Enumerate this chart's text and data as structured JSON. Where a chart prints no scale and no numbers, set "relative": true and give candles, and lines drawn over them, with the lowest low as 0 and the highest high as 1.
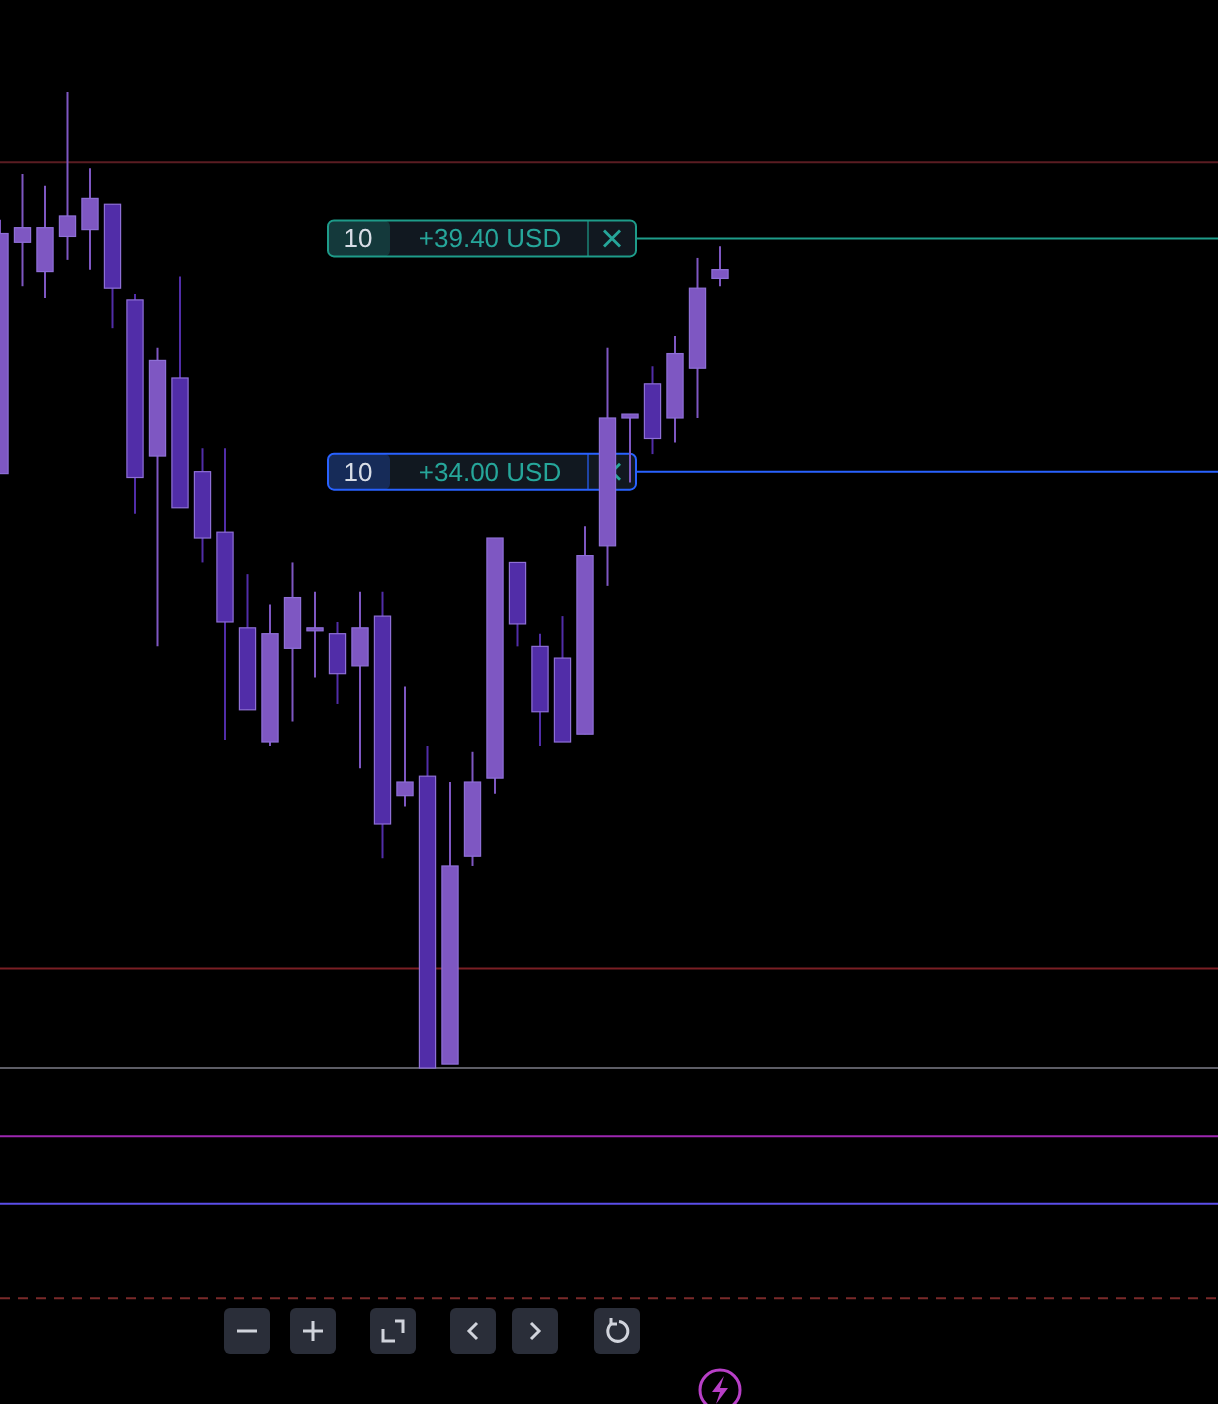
{
  "chart_data": {
    "type": "candlestick",
    "relative": true,
    "categories": [
      null,
      null,
      null,
      null,
      null,
      null,
      null,
      null,
      null,
      null,
      null,
      null,
      null,
      null,
      null,
      null,
      null,
      null,
      null,
      null,
      null,
      null,
      null,
      null,
      null,
      null,
      null,
      null,
      null,
      null,
      null,
      null,
      null
    ],
    "ohlc": [
      [
        0.609,
        0.869,
        0.609,
        0.855
      ],
      [
        0.846,
        0.916,
        0.801,
        0.861
      ],
      [
        0.816,
        0.904,
        0.789,
        0.861
      ],
      [
        0.852,
        1,
        0.828,
        0.873
      ],
      [
        0.859,
        0.922,
        0.818,
        0.891
      ],
      [
        0.885,
        0.885,
        0.758,
        0.799
      ],
      [
        0.787,
        0.793,
        0.568,
        0.605
      ],
      [
        0.627,
        0.738,
        0.432,
        0.725
      ],
      [
        0.707,
        0.811,
        0.574,
        0.574
      ],
      [
        0.611,
        0.635,
        0.518,
        0.543
      ],
      [
        0.549,
        0.635,
        0.336,
        0.457
      ],
      [
        0.451,
        0.506,
        0.367,
        0.367
      ],
      [
        0.334,
        0.475,
        0.33,
        0.445
      ],
      [
        0.43,
        0.518,
        0.355,
        0.482
      ],
      [
        0.451,
        0.488,
        0.4,
        0.451
      ],
      [
        0.445,
        0.457,
        0.373,
        0.404
      ],
      [
        0.412,
        0.488,
        0.307,
        0.451
      ],
      [
        0.463,
        0.488,
        0.215,
        0.25
      ],
      [
        0.279,
        0.391,
        0.268,
        0.293
      ],
      [
        0.299,
        0.33,
        0,
        0
      ],
      [
        0.004,
        0.293,
        0.004,
        0.207
      ],
      [
        0.217,
        0.324,
        0.207,
        0.293
      ],
      [
        0.297,
        0.543,
        0.281,
        0.543
      ],
      [
        0.518,
        0.518,
        0.432,
        0.455
      ],
      [
        0.432,
        0.445,
        0.33,
        0.365
      ],
      [
        0.42,
        0.463,
        0.334,
        0.334
      ],
      [
        0.342,
        0.555,
        0.342,
        0.525
      ],
      [
        0.535,
        0.738,
        0.494,
        0.666
      ],
      [
        0.666,
        0.67,
        0.6,
        0.67
      ],
      [
        0.701,
        0.719,
        0.629,
        0.645
      ],
      [
        0.666,
        0.75,
        0.641,
        0.732
      ],
      [
        0.717,
        0.83,
        0.666,
        0.799
      ],
      [
        0.809,
        0.842,
        0.801,
        0.818
      ]
    ],
    "colors": [
      "#7e57c2",
      "#7e57c2",
      "#7e57c2",
      "#7e57c2",
      "#7e57c2",
      "#512da8",
      "#512da8",
      "#7e57c2",
      "#512da8",
      "#512da8",
      "#512da8",
      "#512da8",
      "#7e57c2",
      "#7e57c2",
      "#7e57c2",
      "#512da8",
      "#7e57c2",
      "#512da8",
      "#7e57c2",
      "#512da8",
      "#7e57c2",
      "#7e57c2",
      "#7e57c2",
      "#512da8",
      "#512da8",
      "#512da8",
      "#7e57c2",
      "#7e57c2",
      "#7e57c2",
      "#512da8",
      "#7e57c2",
      "#7e57c2",
      "#7e57c2"
    ],
    "ref_lines": [
      {
        "axis": "y",
        "value": 0.928,
        "color": "#5a1c22"
      },
      {
        "axis": "y",
        "value": 0.85,
        "label": "10 +39.40 USD",
        "color": "#1e9c8a"
      },
      {
        "axis": "y",
        "value": 0.611,
        "label": "10 +34.00 USD",
        "color": "#2962ff"
      },
      {
        "axis": "y",
        "value": 0.102,
        "color": "#7a1f24"
      },
      {
        "axis": "y",
        "value": 0,
        "color": "#5d5d66"
      },
      {
        "axis": "y",
        "value": -0.07,
        "color": "#9c27b0"
      },
      {
        "axis": "y",
        "value": -0.139,
        "color": "#5b4ee8"
      },
      {
        "axis": "y",
        "value": -0.236,
        "color": "#7a2a2a",
        "line_style": "dashed"
      }
    ]
  }
}
